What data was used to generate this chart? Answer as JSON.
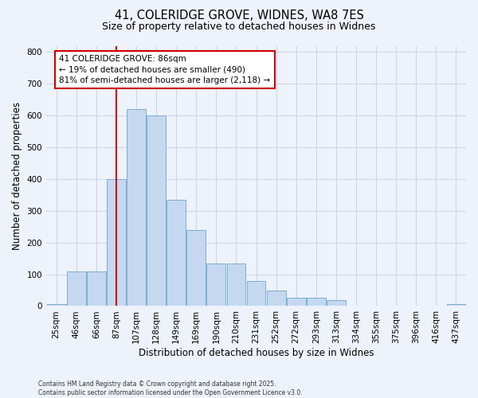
{
  "title_line1": "41, COLERIDGE GROVE, WIDNES, WA8 7ES",
  "title_line2": "Size of property relative to detached houses in Widnes",
  "xlabel": "Distribution of detached houses by size in Widnes",
  "ylabel": "Number of detached properties",
  "bar_labels": [
    "25sqm",
    "46sqm",
    "66sqm",
    "87sqm",
    "107sqm",
    "128sqm",
    "149sqm",
    "169sqm",
    "190sqm",
    "210sqm",
    "231sqm",
    "252sqm",
    "272sqm",
    "293sqm",
    "313sqm",
    "334sqm",
    "355sqm",
    "375sqm",
    "396sqm",
    "416sqm",
    "437sqm"
  ],
  "bar_values": [
    5,
    110,
    110,
    400,
    620,
    600,
    335,
    240,
    135,
    135,
    80,
    50,
    25,
    25,
    18,
    0,
    0,
    0,
    0,
    0,
    5
  ],
  "bar_color": "#c5d8f0",
  "bar_edge_color": "#7aafd4",
  "vline_x_index": 3,
  "vline_color": "#cc0000",
  "annotation_text": "41 COLERIDGE GROVE: 86sqm\n← 19% of detached houses are smaller (490)\n81% of semi-detached houses are larger (2,118) →",
  "annotation_box_color": "#cc0000",
  "ylim": [
    0,
    820
  ],
  "yticks": [
    0,
    100,
    200,
    300,
    400,
    500,
    600,
    700,
    800
  ],
  "grid_color": "#c8d4e8",
  "background_color": "#eef2fa",
  "footer_text": "Contains HM Land Registry data © Crown copyright and database right 2025.\nContains public sector information licensed under the Open Government Licence v3.0.",
  "bar_width": 0.95,
  "title1_fontsize": 10.5,
  "title2_fontsize": 9.0,
  "ylabel_fontsize": 8.5,
  "xlabel_fontsize": 8.5,
  "tick_fontsize": 7.5,
  "annot_fontsize": 7.5,
  "footer_fontsize": 5.5
}
